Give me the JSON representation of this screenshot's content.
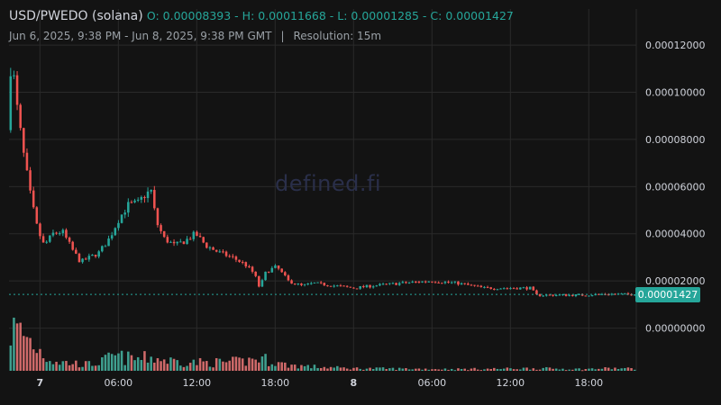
{
  "header": {
    "symbol": "USD/PWEDO (solana)",
    "ohlc": "O: 0.00008393 - H: 0.00011668 - L: 0.00001285 - C: 0.00001427",
    "range": "Jun 6, 2025, 9:38 PM - Jun 8, 2025, 9:38 PM GMT",
    "separator": "|",
    "resolution": "Resolution: 15m"
  },
  "watermark": "defined.fi",
  "last_price_label": "0.00001427",
  "colors": {
    "background": "#131313",
    "grid": "#2a2a2a",
    "up": "#26a69a",
    "down": "#ef5350",
    "up_volume": "#3f9f8f",
    "down_volume": "#d06a6a",
    "last_price_line": "#26a69a"
  },
  "chart_data": {
    "type": "candlestick",
    "x_tick_labels": [
      "7",
      "06:00",
      "12:00",
      "18:00",
      "8",
      "06:00",
      "12:00",
      "18:00"
    ],
    "x_tick_hours": [
      2.367,
      8.367,
      14.367,
      20.367,
      26.367,
      32.367,
      38.367,
      44.367
    ],
    "y_tick_labels": [
      "0.00000000",
      "0.00002000",
      "0.00004000",
      "0.00006000",
      "0.00008000",
      "0.00010000",
      "0.00012000"
    ],
    "y_ticks": [
      0,
      2e-05,
      4e-05,
      6e-05,
      8e-05,
      0.0001,
      0.00012
    ],
    "ylim": [
      -1.81e-05,
      0.0001353
    ],
    "x_range_hours": [
      0,
      48
    ],
    "interval_minutes": 15,
    "last_price": 1.427e-05,
    "price_anchors": [
      [
        0,
        8.393e-05
      ],
      [
        0.3,
        0.000116
      ],
      [
        0.7,
        9.5e-05
      ],
      [
        1.2,
        7.5e-05
      ],
      [
        1.8,
        5.5e-05
      ],
      [
        2.3,
        4.2e-05
      ],
      [
        2.8,
        3.5e-05
      ],
      [
        3.5,
        4e-05
      ],
      [
        4.2,
        4.1e-05
      ],
      [
        5.0,
        3.3e-05
      ],
      [
        5.6,
        2.8e-05
      ],
      [
        6.3,
        3e-05
      ],
      [
        7.0,
        3.2e-05
      ],
      [
        7.8,
        3.8e-05
      ],
      [
        8.5,
        4.6e-05
      ],
      [
        9.2,
        5.2e-05
      ],
      [
        10.0,
        5.3e-05
      ],
      [
        10.6,
        5.7e-05
      ],
      [
        11.0,
        5.8e-05
      ],
      [
        11.4,
        4.5e-05
      ],
      [
        12.0,
        3.8e-05
      ],
      [
        12.8,
        3.5e-05
      ],
      [
        13.6,
        3.7e-05
      ],
      [
        14.4,
        4e-05
      ],
      [
        15.2,
        3.5e-05
      ],
      [
        16.2,
        3.2e-05
      ],
      [
        17.2,
        3e-05
      ],
      [
        18.2,
        2.7e-05
      ],
      [
        18.9,
        2.3e-05
      ],
      [
        19.3,
        1.7e-05
      ],
      [
        19.8,
        2.4e-05
      ],
      [
        20.6,
        2.6e-05
      ],
      [
        21.5,
        2e-05
      ],
      [
        22.5,
        1.8e-05
      ],
      [
        23.5,
        1.9e-05
      ],
      [
        25.0,
        1.8e-05
      ],
      [
        26.5,
        1.7e-05
      ],
      [
        28.0,
        1.8e-05
      ],
      [
        30.0,
        1.9e-05
      ],
      [
        32.5,
        2e-05
      ],
      [
        34.5,
        1.9e-05
      ],
      [
        36.5,
        1.7e-05
      ],
      [
        38.5,
        1.7e-05
      ],
      [
        40.0,
        1.7e-05
      ],
      [
        40.5,
        1.4e-05
      ],
      [
        42.0,
        1.4e-05
      ],
      [
        44.0,
        1.4e-05
      ],
      [
        46.0,
        1.45e-05
      ],
      [
        48.0,
        1.427e-05
      ]
    ],
    "volume_anchors": [
      [
        0,
        0.9
      ],
      [
        0.5,
        1.0
      ],
      [
        1.2,
        0.85
      ],
      [
        2.0,
        0.6
      ],
      [
        3.0,
        0.3
      ],
      [
        4.0,
        0.2
      ],
      [
        5.0,
        0.18
      ],
      [
        6.0,
        0.15
      ],
      [
        7.0,
        0.2
      ],
      [
        8.0,
        0.35
      ],
      [
        9.0,
        0.3
      ],
      [
        10.0,
        0.28
      ],
      [
        11.0,
        0.32
      ],
      [
        12.0,
        0.25
      ],
      [
        14.0,
        0.2
      ],
      [
        16.0,
        0.2
      ],
      [
        18.0,
        0.22
      ],
      [
        19.0,
        0.3
      ],
      [
        20.0,
        0.25
      ],
      [
        21.0,
        0.15
      ],
      [
        23.0,
        0.1
      ],
      [
        26.0,
        0.06
      ],
      [
        30.0,
        0.05
      ],
      [
        34.0,
        0.04
      ],
      [
        38.0,
        0.05
      ],
      [
        40.0,
        0.06
      ],
      [
        44.0,
        0.04
      ],
      [
        46.0,
        0.06
      ],
      [
        48.0,
        0.05
      ]
    ]
  }
}
